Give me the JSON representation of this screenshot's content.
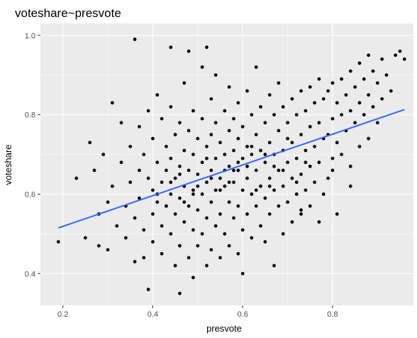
{
  "chart_data": {
    "type": "scatter",
    "title": "voteshare~presvote",
    "xlabel": "presvote",
    "ylabel": "voteshare",
    "xlim": [
      0.15,
      0.98
    ],
    "ylim": [
      0.32,
      1.03
    ],
    "x_ticks": [
      0.2,
      0.4,
      0.6,
      0.8
    ],
    "x_tick_labels": [
      "0.2",
      "0.4",
      "0.6",
      "0.8"
    ],
    "y_ticks": [
      0.4,
      0.6,
      0.8,
      1.0
    ],
    "y_tick_labels": [
      "0.4",
      "0.6",
      "0.8",
      "1.0"
    ],
    "grid": true,
    "points": [
      [
        0.19,
        0.48
      ],
      [
        0.23,
        0.64
      ],
      [
        0.25,
        0.49
      ],
      [
        0.26,
        0.73
      ],
      [
        0.27,
        0.66
      ],
      [
        0.28,
        0.55
      ],
      [
        0.28,
        0.47
      ],
      [
        0.29,
        0.7
      ],
      [
        0.3,
        0.58
      ],
      [
        0.3,
        0.46
      ],
      [
        0.31,
        0.83
      ],
      [
        0.31,
        0.62
      ],
      [
        0.32,
        0.52
      ],
      [
        0.33,
        0.78
      ],
      [
        0.33,
        0.68
      ],
      [
        0.34,
        0.57
      ],
      [
        0.34,
        0.49
      ],
      [
        0.35,
        0.72
      ],
      [
        0.35,
        0.63
      ],
      [
        0.36,
        0.99
      ],
      [
        0.36,
        0.54
      ],
      [
        0.36,
        0.43
      ],
      [
        0.37,
        0.77
      ],
      [
        0.37,
        0.66
      ],
      [
        0.37,
        0.59
      ],
      [
        0.38,
        0.7
      ],
      [
        0.38,
        0.51
      ],
      [
        0.38,
        0.44
      ],
      [
        0.39,
        0.81
      ],
      [
        0.39,
        0.64
      ],
      [
        0.39,
        0.36
      ],
      [
        0.4,
        0.74
      ],
      [
        0.4,
        0.61
      ],
      [
        0.4,
        0.55
      ],
      [
        0.4,
        0.48
      ],
      [
        0.41,
        0.85
      ],
      [
        0.41,
        0.68
      ],
      [
        0.41,
        0.58
      ],
      [
        0.42,
        0.79
      ],
      [
        0.42,
        0.63
      ],
      [
        0.42,
        0.52
      ],
      [
        0.42,
        0.45
      ],
      [
        0.43,
        0.72
      ],
      [
        0.43,
        0.66
      ],
      [
        0.43,
        0.57
      ],
      [
        0.44,
        0.97
      ],
      [
        0.44,
        0.82
      ],
      [
        0.44,
        0.69
      ],
      [
        0.44,
        0.6
      ],
      [
        0.44,
        0.5
      ],
      [
        0.45,
        0.75
      ],
      [
        0.45,
        0.64
      ],
      [
        0.45,
        0.55
      ],
      [
        0.45,
        0.42
      ],
      [
        0.46,
        0.78
      ],
      [
        0.46,
        0.67
      ],
      [
        0.46,
        0.59
      ],
      [
        0.46,
        0.47
      ],
      [
        0.46,
        0.35
      ],
      [
        0.47,
        0.88
      ],
      [
        0.47,
        0.71
      ],
      [
        0.47,
        0.62
      ],
      [
        0.47,
        0.53
      ],
      [
        0.48,
        0.96
      ],
      [
        0.48,
        0.76
      ],
      [
        0.48,
        0.66
      ],
      [
        0.48,
        0.57
      ],
      [
        0.48,
        0.44
      ],
      [
        0.49,
        0.81
      ],
      [
        0.49,
        0.7
      ],
      [
        0.49,
        0.61
      ],
      [
        0.49,
        0.51
      ],
      [
        0.49,
        0.39
      ],
      [
        0.5,
        0.74
      ],
      [
        0.5,
        0.65
      ],
      [
        0.5,
        0.56
      ],
      [
        0.5,
        0.47
      ],
      [
        0.51,
        0.92
      ],
      [
        0.51,
        0.79
      ],
      [
        0.51,
        0.68
      ],
      [
        0.51,
        0.6
      ],
      [
        0.51,
        0.5
      ],
      [
        0.52,
        0.97
      ],
      [
        0.52,
        0.72
      ],
      [
        0.52,
        0.63
      ],
      [
        0.52,
        0.54
      ],
      [
        0.52,
        0.42
      ],
      [
        0.53,
        0.84
      ],
      [
        0.53,
        0.75
      ],
      [
        0.53,
        0.66
      ],
      [
        0.53,
        0.58
      ],
      [
        0.53,
        0.46
      ],
      [
        0.54,
        0.9
      ],
      [
        0.54,
        0.78
      ],
      [
        0.54,
        0.69
      ],
      [
        0.54,
        0.61
      ],
      [
        0.54,
        0.52
      ],
      [
        0.55,
        0.73
      ],
      [
        0.55,
        0.64
      ],
      [
        0.55,
        0.55
      ],
      [
        0.55,
        0.44
      ],
      [
        0.56,
        0.81
      ],
      [
        0.56,
        0.7
      ],
      [
        0.56,
        0.62
      ],
      [
        0.56,
        0.5
      ],
      [
        0.57,
        0.87
      ],
      [
        0.57,
        0.76
      ],
      [
        0.57,
        0.67
      ],
      [
        0.57,
        0.58
      ],
      [
        0.57,
        0.47
      ],
      [
        0.58,
        0.79
      ],
      [
        0.58,
        0.71
      ],
      [
        0.58,
        0.63
      ],
      [
        0.58,
        0.54
      ],
      [
        0.59,
        0.83
      ],
      [
        0.59,
        0.74
      ],
      [
        0.59,
        0.66
      ],
      [
        0.59,
        0.57
      ],
      [
        0.59,
        0.45
      ],
      [
        0.6,
        0.77
      ],
      [
        0.6,
        0.69
      ],
      [
        0.6,
        0.61
      ],
      [
        0.6,
        0.51
      ],
      [
        0.6,
        0.4
      ],
      [
        0.61,
        0.86
      ],
      [
        0.61,
        0.72
      ],
      [
        0.61,
        0.64
      ],
      [
        0.61,
        0.55
      ],
      [
        0.62,
        0.8
      ],
      [
        0.62,
        0.7
      ],
      [
        0.62,
        0.6
      ],
      [
        0.62,
        0.49
      ],
      [
        0.63,
        0.92
      ],
      [
        0.63,
        0.75
      ],
      [
        0.63,
        0.66
      ],
      [
        0.63,
        0.57
      ],
      [
        0.64,
        0.82
      ],
      [
        0.64,
        0.71
      ],
      [
        0.64,
        0.62
      ],
      [
        0.64,
        0.52
      ],
      [
        0.65,
        0.78
      ],
      [
        0.65,
        0.68
      ],
      [
        0.65,
        0.59
      ],
      [
        0.65,
        0.48
      ],
      [
        0.66,
        0.85
      ],
      [
        0.66,
        0.73
      ],
      [
        0.66,
        0.64
      ],
      [
        0.66,
        0.55
      ],
      [
        0.67,
        0.8
      ],
      [
        0.67,
        0.7
      ],
      [
        0.67,
        0.61
      ],
      [
        0.67,
        0.42
      ],
      [
        0.68,
        0.88
      ],
      [
        0.68,
        0.76
      ],
      [
        0.68,
        0.66
      ],
      [
        0.68,
        0.57
      ],
      [
        0.69,
        0.82
      ],
      [
        0.69,
        0.71
      ],
      [
        0.69,
        0.62
      ],
      [
        0.69,
        0.5
      ],
      [
        0.7,
        0.78
      ],
      [
        0.7,
        0.68
      ],
      [
        0.7,
        0.58
      ],
      [
        0.71,
        0.84
      ],
      [
        0.71,
        0.73
      ],
      [
        0.71,
        0.64
      ],
      [
        0.71,
        0.53
      ],
      [
        0.72,
        0.8
      ],
      [
        0.72,
        0.69
      ],
      [
        0.72,
        0.6
      ],
      [
        0.73,
        0.86
      ],
      [
        0.73,
        0.75
      ],
      [
        0.73,
        0.65
      ],
      [
        0.73,
        0.56
      ],
      [
        0.74,
        0.81
      ],
      [
        0.74,
        0.71
      ],
      [
        0.74,
        0.61
      ],
      [
        0.75,
        0.87
      ],
      [
        0.75,
        0.77
      ],
      [
        0.75,
        0.67
      ],
      [
        0.75,
        0.57
      ],
      [
        0.76,
        0.83
      ],
      [
        0.76,
        0.72
      ],
      [
        0.76,
        0.63
      ],
      [
        0.77,
        0.89
      ],
      [
        0.77,
        0.78
      ],
      [
        0.77,
        0.68
      ],
      [
        0.78,
        0.84
      ],
      [
        0.78,
        0.74
      ],
      [
        0.78,
        0.6
      ],
      [
        0.79,
        0.86
      ],
      [
        0.79,
        0.75
      ],
      [
        0.79,
        0.64
      ],
      [
        0.8,
        0.88
      ],
      [
        0.8,
        0.79
      ],
      [
        0.8,
        0.69
      ],
      [
        0.81,
        0.83
      ],
      [
        0.81,
        0.73
      ],
      [
        0.81,
        0.55
      ],
      [
        0.82,
        0.89
      ],
      [
        0.82,
        0.8
      ],
      [
        0.82,
        0.7
      ],
      [
        0.83,
        0.85
      ],
      [
        0.83,
        0.76
      ],
      [
        0.84,
        0.91
      ],
      [
        0.84,
        0.81
      ],
      [
        0.84,
        0.67
      ],
      [
        0.85,
        0.87
      ],
      [
        0.85,
        0.78
      ],
      [
        0.86,
        0.93
      ],
      [
        0.86,
        0.83
      ],
      [
        0.86,
        0.72
      ],
      [
        0.87,
        0.89
      ],
      [
        0.87,
        0.8
      ],
      [
        0.88,
        0.95
      ],
      [
        0.88,
        0.85
      ],
      [
        0.88,
        0.74
      ],
      [
        0.89,
        0.91
      ],
      [
        0.89,
        0.82
      ],
      [
        0.9,
        0.88
      ],
      [
        0.9,
        0.78
      ],
      [
        0.91,
        0.94
      ],
      [
        0.91,
        0.84
      ],
      [
        0.92,
        0.9
      ],
      [
        0.93,
        0.86
      ],
      [
        0.94,
        0.95
      ],
      [
        0.95,
        0.96
      ],
      [
        0.96,
        0.94
      ],
      [
        0.73,
        0.55
      ],
      [
        0.77,
        0.53
      ],
      [
        0.8,
        0.66
      ],
      [
        0.84,
        0.62
      ],
      [
        0.44,
        0.63
      ],
      [
        0.47,
        0.58
      ],
      [
        0.5,
        0.62
      ],
      [
        0.53,
        0.64
      ],
      [
        0.56,
        0.66
      ],
      [
        0.59,
        0.68
      ],
      [
        0.62,
        0.72
      ],
      [
        0.65,
        0.7
      ],
      [
        0.41,
        0.6
      ],
      [
        0.46,
        0.65
      ],
      [
        0.52,
        0.69
      ],
      [
        0.57,
        0.63
      ],
      [
        0.61,
        0.67
      ],
      [
        0.66,
        0.62
      ],
      [
        0.69,
        0.66
      ],
      [
        0.72,
        0.63
      ],
      [
        0.43,
        0.57
      ],
      [
        0.49,
        0.6
      ],
      [
        0.55,
        0.61
      ],
      [
        0.58,
        0.66
      ],
      [
        0.63,
        0.61
      ],
      [
        0.67,
        0.67
      ],
      [
        0.7,
        0.74
      ],
      [
        0.74,
        0.68
      ]
    ],
    "fit_line": {
      "x": [
        0.19,
        0.96
      ],
      "y": [
        0.515,
        0.813
      ],
      "color": "#3366ff"
    },
    "colors": {
      "panel": "#ebebeb",
      "grid": "#ffffff",
      "point": "#000000"
    }
  }
}
